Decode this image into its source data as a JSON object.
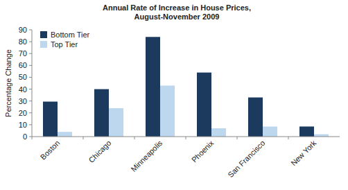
{
  "chart_data": {
    "type": "bar",
    "title": "Annual Rate of Increase in House Prices,",
    "subtitle": "August-November 2009",
    "y_label": "Percentage Change",
    "categories": [
      "Boston",
      "Chicago",
      "Minneapolis",
      "Phoenix",
      "San Francisco",
      "New York"
    ],
    "series": [
      {
        "name": "Bottom Tier",
        "color": "#1b3a5e",
        "values": [
          29.5,
          40,
          84,
          54,
          33,
          8.5
        ]
      },
      {
        "name": "Top Tier",
        "color": "#bdd7ee",
        "values": [
          4,
          24,
          43,
          7,
          8.5,
          2
        ]
      }
    ],
    "ylim": [
      0,
      90
    ],
    "yticks": [
      0,
      10,
      20,
      30,
      40,
      50,
      60,
      70,
      80,
      90
    ],
    "grid": false,
    "legend": "upper left"
  }
}
